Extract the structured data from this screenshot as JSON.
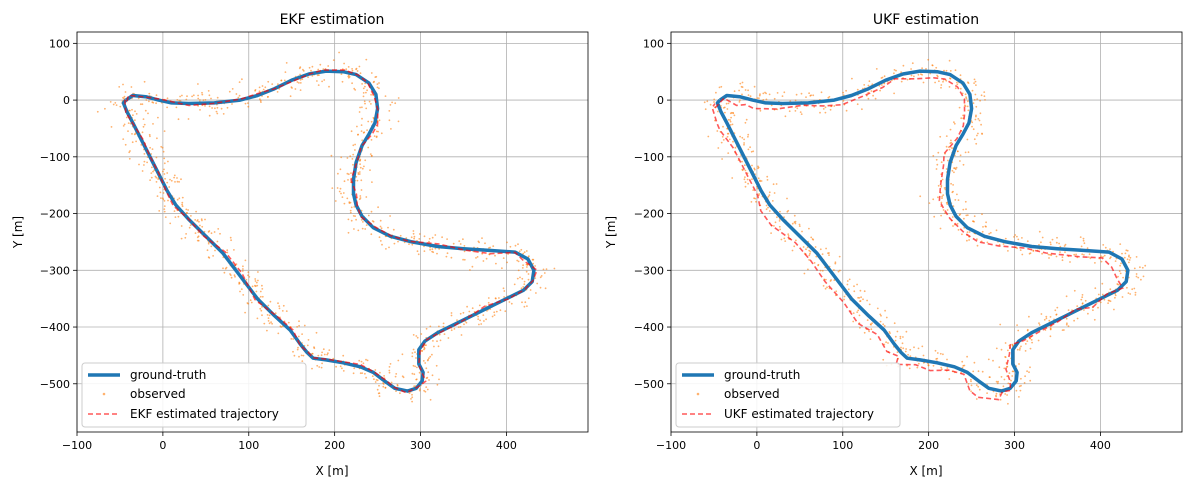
{
  "chart_data": [
    {
      "type": "line",
      "title": "EKF estimation",
      "xlabel": "X [m]",
      "ylabel": "Y [m]",
      "xlim": [
        -100,
        495
      ],
      "ylim": [
        -585,
        120
      ],
      "xticks": [
        -100,
        0,
        100,
        200,
        300,
        400
      ],
      "yticks": [
        100,
        0,
        -100,
        -200,
        -300,
        -400,
        -500
      ],
      "grid": true,
      "legend_position": "lower-left",
      "legend": [
        "ground-truth",
        "observed",
        "EKF estimated trajectory"
      ],
      "colors": {
        "ground_truth": "#1f77b4",
        "observed": "#ff7f0e",
        "estimate": "#ff0000"
      },
      "estimate_style": "dashed",
      "estimate_offset": [
        0,
        0
      ],
      "seed": 7
    },
    {
      "type": "line",
      "title": "UKF estimation",
      "xlabel": "X [m]",
      "ylabel": "Y [m]",
      "xlim": [
        -100,
        495
      ],
      "ylim": [
        -585,
        120
      ],
      "xticks": [
        -100,
        0,
        100,
        200,
        300,
        400
      ],
      "yticks": [
        100,
        0,
        -100,
        -200,
        -300,
        -400,
        -500
      ],
      "grid": true,
      "legend_position": "lower-left",
      "legend": [
        "ground-truth",
        "observed",
        "UKF estimated trajectory"
      ],
      "colors": {
        "ground_truth": "#1f77b4",
        "observed": "#ff7f0e",
        "estimate": "#ff0000"
      },
      "estimate_style": "dashed",
      "estimate_offset": [
        -8,
        -10
      ],
      "seed": 13
    }
  ],
  "ground_truth": {
    "x": [
      -43,
      -35,
      -20,
      -5,
      10,
      30,
      60,
      90,
      110,
      130,
      150,
      170,
      190,
      210,
      225,
      240,
      248,
      250,
      247,
      240,
      232,
      225,
      222,
      222,
      225,
      232,
      245,
      265,
      290,
      320,
      350,
      380,
      410,
      425,
      432,
      430,
      420,
      400,
      380,
      360,
      340,
      320,
      305,
      298,
      298,
      303,
      302,
      295,
      285,
      270,
      258,
      245,
      230,
      210,
      190,
      175,
      168,
      160,
      148,
      130,
      110,
      90,
      70,
      50,
      30,
      15,
      5,
      -5,
      -15,
      -25,
      -35,
      -42,
      -46,
      -43
    ],
    "y": [
      0,
      8,
      6,
      0,
      -5,
      -6,
      -5,
      0,
      8,
      20,
      35,
      46,
      51,
      50,
      45,
      30,
      10,
      -15,
      -40,
      -60,
      -80,
      -110,
      -140,
      -165,
      -185,
      -205,
      -225,
      -240,
      -250,
      -258,
      -262,
      -265,
      -268,
      -280,
      -300,
      -320,
      -335,
      -350,
      -365,
      -380,
      -395,
      -410,
      -425,
      -440,
      -465,
      -480,
      -495,
      -508,
      -513,
      -508,
      -495,
      -480,
      -470,
      -463,
      -458,
      -455,
      -445,
      -430,
      -405,
      -380,
      -350,
      -310,
      -270,
      -240,
      -210,
      -185,
      -160,
      -130,
      -100,
      -70,
      -40,
      -20,
      -5,
      0
    ]
  }
}
